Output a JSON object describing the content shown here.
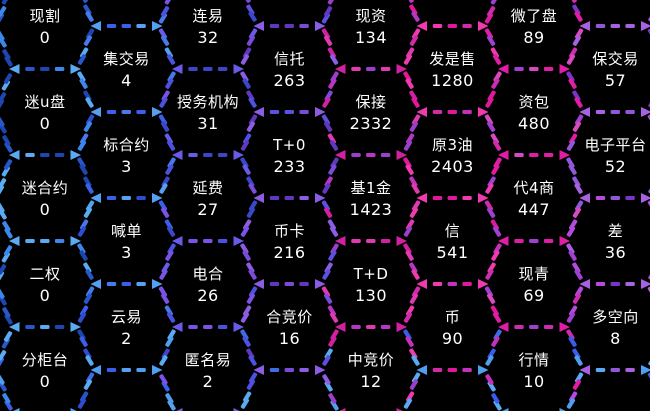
{
  "palette": {
    "background": "#000000",
    "text": "#ffffff",
    "columns": [
      [
        "#3c86ec",
        "#5aabf2",
        "#2857cc",
        "#1e46b0"
      ],
      [
        "#3a5fe8",
        "#55a0f0",
        "#2f4cd0",
        "#4879ec"
      ],
      [
        "#4b52e0",
        "#6a5ae8",
        "#3a47c8",
        "#7a52e8"
      ],
      [
        "#7a4ad8",
        "#8c5ce5",
        "#6038c0",
        "#5b50e0"
      ],
      [
        "#b836c4",
        "#d0219f",
        "#9a3fc8",
        "#e03ab0"
      ],
      [
        "#e0189c",
        "#f03ab0",
        "#c431bc",
        "#d22aa8"
      ],
      [
        "#cc2cb0",
        "#e01da4",
        "#a040d0",
        "#d84ac0"
      ],
      [
        "#9058d8",
        "#a861e0",
        "#7a34c8",
        "#b44ae0"
      ]
    ],
    "bottom_blue": [
      "#3a5ce8",
      "#4f9ef0",
      "#58aaf2",
      "#3f6ce4"
    ]
  },
  "chart_data": {
    "type": "heatmap",
    "layout": "hexagonal honeycomb, flat-top hexagons, 8 columns, dashed neon borders on black",
    "legend_position": "none",
    "items": [
      {
        "label": "现割",
        "value": 0,
        "col": 0,
        "row": 0
      },
      {
        "label": "迷u盘",
        "value": 0,
        "col": 0,
        "row": 1
      },
      {
        "label": "迷合约",
        "value": 0,
        "col": 0,
        "row": 2
      },
      {
        "label": "二权",
        "value": 0,
        "col": 0,
        "row": 3
      },
      {
        "label": "分柜台",
        "value": 0,
        "col": 0,
        "row": 4
      },
      {
        "label": "集交易",
        "value": 4,
        "col": 1,
        "row": 0
      },
      {
        "label": "标合约",
        "value": 3,
        "col": 1,
        "row": 1
      },
      {
        "label": "喊单",
        "value": 3,
        "col": 1,
        "row": 2
      },
      {
        "label": "云易",
        "value": 2,
        "col": 1,
        "row": 3
      },
      {
        "label": "连易",
        "value": 32,
        "col": 2,
        "row": 0
      },
      {
        "label": "授务机构",
        "value": 31,
        "col": 2,
        "row": 1
      },
      {
        "label": "延费",
        "value": 27,
        "col": 2,
        "row": 2
      },
      {
        "label": "电合",
        "value": 26,
        "col": 2,
        "row": 3
      },
      {
        "label": "匿名易",
        "value": 2,
        "col": 2,
        "row": 4
      },
      {
        "label": "信托",
        "value": 263,
        "col": 3,
        "row": 0
      },
      {
        "label": "T+0",
        "value": 233,
        "col": 3,
        "row": 1
      },
      {
        "label": "币卡",
        "value": 216,
        "col": 3,
        "row": 2
      },
      {
        "label": "合竞价",
        "value": 16,
        "col": 3,
        "row": 3
      },
      {
        "label": "现资",
        "value": 134,
        "col": 4,
        "row": 0
      },
      {
        "label": "保接",
        "value": 2332,
        "col": 4,
        "row": 1
      },
      {
        "label": "基1金",
        "value": 1423,
        "col": 4,
        "row": 2
      },
      {
        "label": "T+D",
        "value": 130,
        "col": 4,
        "row": 3
      },
      {
        "label": "中竞价",
        "value": 12,
        "col": 4,
        "row": 4
      },
      {
        "label": "发是售",
        "value": 1280,
        "col": 5,
        "row": 0
      },
      {
        "label": "原3油",
        "value": 2403,
        "col": 5,
        "row": 1
      },
      {
        "label": "信",
        "value": 541,
        "col": 5,
        "row": 2
      },
      {
        "label": "币",
        "value": 90,
        "col": 5,
        "row": 3
      },
      {
        "label": "微了盘",
        "value": 89,
        "col": 6,
        "row": 0
      },
      {
        "label": "资包",
        "value": 480,
        "col": 6,
        "row": 1
      },
      {
        "label": "代4商",
        "value": 447,
        "col": 6,
        "row": 2
      },
      {
        "label": "现青",
        "value": 69,
        "col": 6,
        "row": 3
      },
      {
        "label": "行情",
        "value": 10,
        "col": 6,
        "row": 4
      },
      {
        "label": "保交易",
        "value": 57,
        "col": 7,
        "row": 0
      },
      {
        "label": "电子平台",
        "value": 52,
        "col": 7,
        "row": 1
      },
      {
        "label": "差",
        "value": 36,
        "col": 7,
        "row": 2
      },
      {
        "label": "多空向",
        "value": 8,
        "col": 7,
        "row": 3
      }
    ]
  }
}
